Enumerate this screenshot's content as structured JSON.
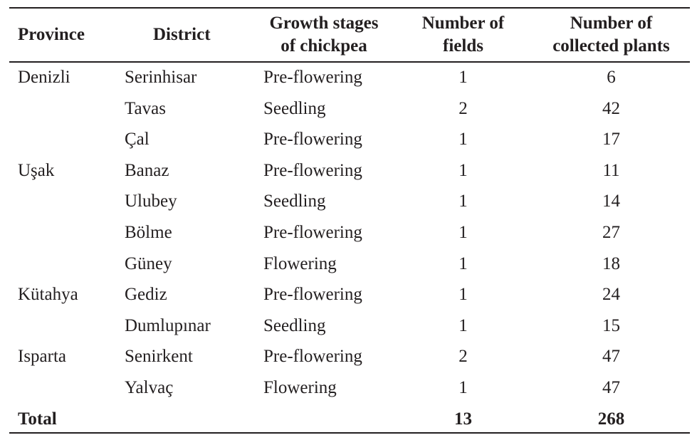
{
  "table": {
    "headers": {
      "province": "Province",
      "district": "District",
      "stage_line1": "Growth stages",
      "stage_line2": "of chickpea",
      "fields_line1": "Number of",
      "fields_line2": "fields",
      "plants_line1": "Number of",
      "plants_line2": "collected plants"
    },
    "rows": [
      {
        "province": "Denizli",
        "district": "Serinhisar",
        "stage": "Pre-flowering",
        "fields": "1",
        "plants": "6"
      },
      {
        "province": "",
        "district": "Tavas",
        "stage": "Seedling",
        "fields": "2",
        "plants": "42"
      },
      {
        "province": "",
        "district": "Çal",
        "stage": "Pre-flowering",
        "fields": "1",
        "plants": "17"
      },
      {
        "province": "Uşak",
        "district": "Banaz",
        "stage": "Pre-flowering",
        "fields": "1",
        "plants": "11"
      },
      {
        "province": "",
        "district": "Ulubey",
        "stage": "Seedling",
        "fields": "1",
        "plants": "14"
      },
      {
        "province": "",
        "district": "Bölme",
        "stage": "Pre-flowering",
        "fields": "1",
        "plants": "27"
      },
      {
        "province": "",
        "district": "Güney",
        "stage": "Flowering",
        "fields": "1",
        "plants": "18"
      },
      {
        "province": "Kütahya",
        "district": "Gediz",
        "stage": "Pre-flowering",
        "fields": "1",
        "plants": "24"
      },
      {
        "province": "",
        "district": "Dumlupınar",
        "stage": "Seedling",
        "fields": "1",
        "plants": "15"
      },
      {
        "province": "Isparta",
        "district": "Senirkent",
        "stage": "Pre-flowering",
        "fields": "2",
        "plants": "47"
      },
      {
        "province": "",
        "district": "Yalvaç",
        "stage": "Flowering",
        "fields": "1",
        "plants": "47"
      }
    ],
    "total": {
      "label": "Total",
      "fields": "13",
      "plants": "268"
    }
  }
}
